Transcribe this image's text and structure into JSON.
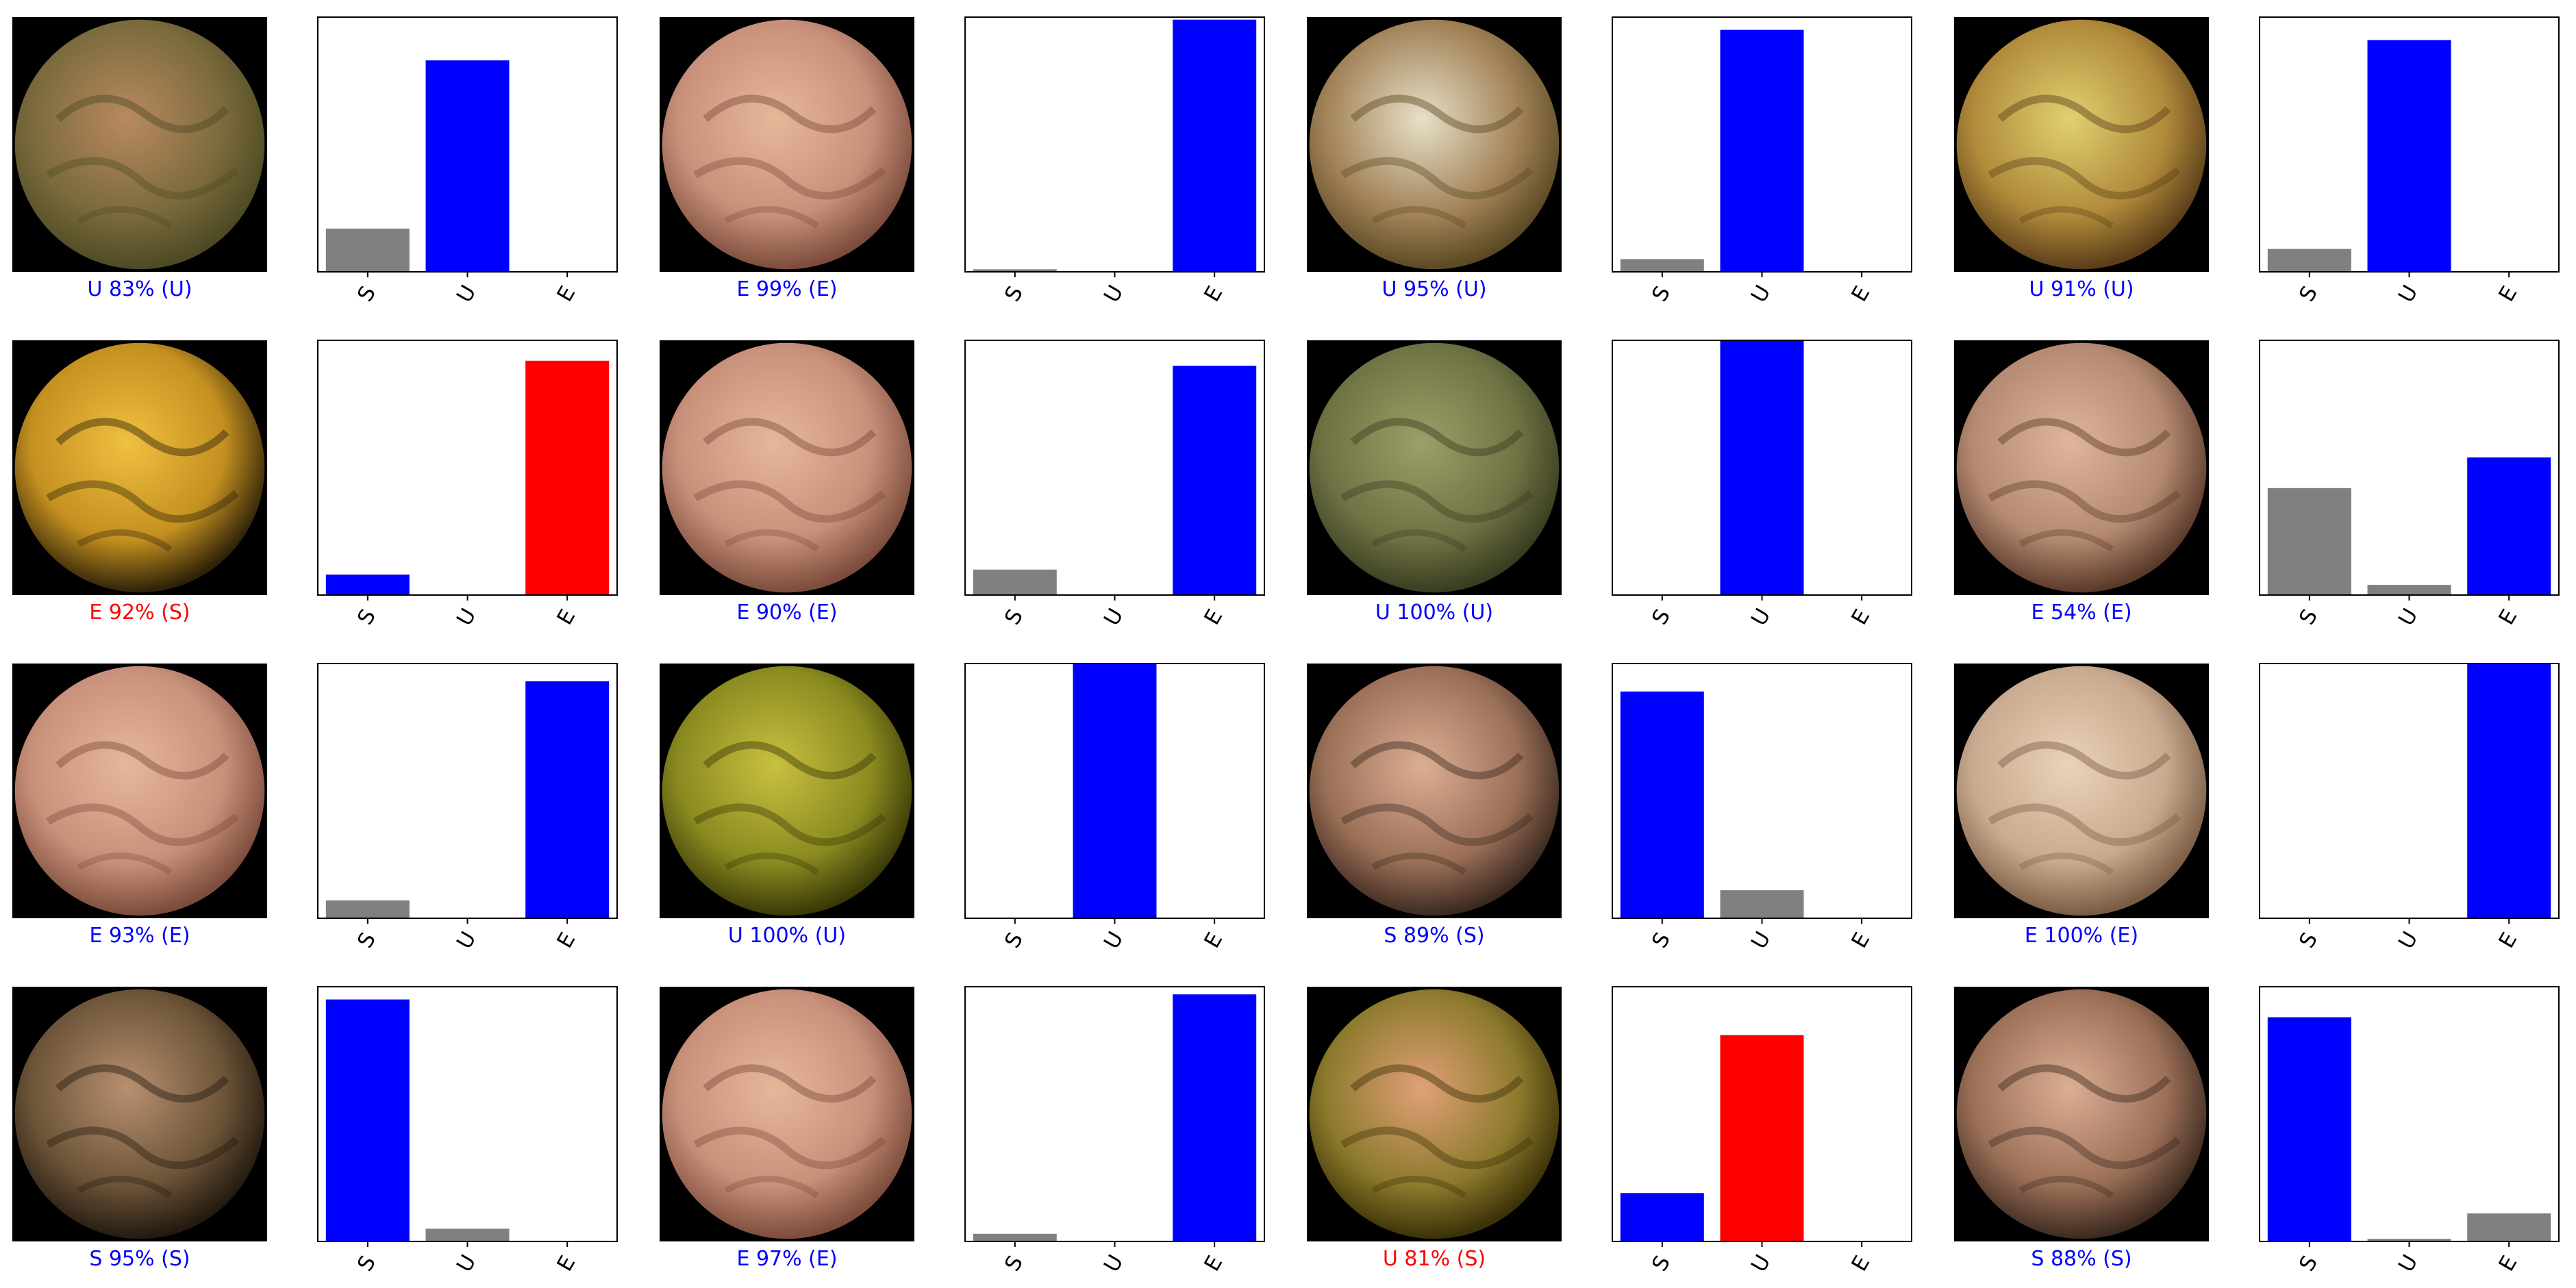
{
  "classes": [
    "S",
    "U",
    "E"
  ],
  "colors": {
    "correct": "#0000ff",
    "incorrect": "#ff0000",
    "other_bar": "#808080",
    "plot_border": "#000000"
  },
  "chart_data": [
    {
      "type": "bar",
      "caption": "U 83% (U)",
      "predicted": "U",
      "actual": "U",
      "correct": true,
      "categories": [
        "S",
        "U",
        "E"
      ],
      "values": [
        0.17,
        0.83,
        0.0
      ],
      "ylim": [
        0,
        1
      ],
      "image": "endoscopy-greenish-mucosa"
    },
    {
      "type": "bar",
      "caption": "E 99% (E)",
      "predicted": "E",
      "actual": "E",
      "correct": true,
      "categories": [
        "S",
        "U",
        "E"
      ],
      "values": [
        0.01,
        0.0,
        0.99
      ],
      "ylim": [
        0,
        1
      ],
      "image": "endoscopy-villous-folds"
    },
    {
      "type": "bar",
      "caption": "U 95% (U)",
      "predicted": "U",
      "actual": "U",
      "correct": true,
      "categories": [
        "S",
        "U",
        "E"
      ],
      "values": [
        0.05,
        0.95,
        0.0
      ],
      "ylim": [
        0,
        1
      ],
      "image": "endoscopy-debris-strands"
    },
    {
      "type": "bar",
      "caption": "U 91% (U)",
      "predicted": "U",
      "actual": "U",
      "correct": true,
      "categories": [
        "S",
        "U",
        "E"
      ],
      "values": [
        0.09,
        0.91,
        0.0
      ],
      "ylim": [
        0,
        1
      ],
      "image": "endoscopy-yellow-debris"
    },
    {
      "type": "bar",
      "caption": "E 92% (S)",
      "predicted": "E",
      "actual": "S",
      "correct": false,
      "categories": [
        "S",
        "U",
        "E"
      ],
      "values": [
        0.08,
        0.0,
        0.92
      ],
      "ylim": [
        0,
        1
      ],
      "image": "endoscopy-yellow-lumen"
    },
    {
      "type": "bar",
      "caption": "E 90% (E)",
      "predicted": "E",
      "actual": "E",
      "correct": true,
      "categories": [
        "S",
        "U",
        "E"
      ],
      "values": [
        0.1,
        0.0,
        0.9
      ],
      "ylim": [
        0,
        1
      ],
      "image": "endoscopy-villous-folds"
    },
    {
      "type": "bar",
      "caption": "U 100% (U)",
      "predicted": "U",
      "actual": "U",
      "correct": true,
      "categories": [
        "S",
        "U",
        "E"
      ],
      "values": [
        0.0,
        1.0,
        0.0
      ],
      "ylim": [
        0,
        1
      ],
      "image": "endoscopy-greenish-fluid"
    },
    {
      "type": "bar",
      "caption": "E 54% (E)",
      "predicted": "E",
      "actual": "E",
      "correct": true,
      "categories": [
        "S",
        "U",
        "E"
      ],
      "values": [
        0.42,
        0.04,
        0.54
      ],
      "ylim": [
        0,
        1
      ],
      "image": "endoscopy-pink-mucosa"
    },
    {
      "type": "bar",
      "caption": "E 93% (E)",
      "predicted": "E",
      "actual": "E",
      "correct": true,
      "categories": [
        "S",
        "U",
        "E"
      ],
      "values": [
        0.07,
        0.0,
        0.93
      ],
      "ylim": [
        0,
        1
      ],
      "image": "endoscopy-villous-folds"
    },
    {
      "type": "bar",
      "caption": "U 100% (U)",
      "predicted": "U",
      "actual": "U",
      "correct": true,
      "categories": [
        "S",
        "U",
        "E"
      ],
      "values": [
        0.0,
        1.0,
        0.0
      ],
      "ylim": [
        0,
        1
      ],
      "image": "endoscopy-green-granular"
    },
    {
      "type": "bar",
      "caption": "S 89% (S)",
      "predicted": "S",
      "actual": "S",
      "correct": true,
      "categories": [
        "S",
        "U",
        "E"
      ],
      "values": [
        0.89,
        0.11,
        0.0
      ],
      "ylim": [
        0,
        1
      ],
      "image": "endoscopy-folds-debris"
    },
    {
      "type": "bar",
      "caption": "E 100% (E)",
      "predicted": "E",
      "actual": "E",
      "correct": true,
      "categories": [
        "S",
        "U",
        "E"
      ],
      "values": [
        0.0,
        0.0,
        1.0
      ],
      "ylim": [
        0,
        1
      ],
      "image": "endoscopy-pale-folds"
    },
    {
      "type": "bar",
      "caption": "S 95% (S)",
      "predicted": "S",
      "actual": "S",
      "correct": true,
      "categories": [
        "S",
        "U",
        "E"
      ],
      "values": [
        0.95,
        0.05,
        0.0
      ],
      "ylim": [
        0,
        1
      ],
      "image": "endoscopy-dark-debris"
    },
    {
      "type": "bar",
      "caption": "E 97% (E)",
      "predicted": "E",
      "actual": "E",
      "correct": true,
      "categories": [
        "S",
        "U",
        "E"
      ],
      "values": [
        0.03,
        0.0,
        0.97
      ],
      "ylim": [
        0,
        1
      ],
      "image": "endoscopy-villous-folds"
    },
    {
      "type": "bar",
      "caption": "U 81% (S)",
      "predicted": "U",
      "actual": "S",
      "correct": false,
      "categories": [
        "S",
        "U",
        "E"
      ],
      "values": [
        0.19,
        0.81,
        0.0
      ],
      "ylim": [
        0,
        1
      ],
      "image": "endoscopy-mucosa-debris"
    },
    {
      "type": "bar",
      "caption": "S 88% (S)",
      "predicted": "S",
      "actual": "S",
      "correct": true,
      "categories": [
        "S",
        "U",
        "E"
      ],
      "values": [
        0.88,
        0.01,
        0.11
      ],
      "ylim": [
        0,
        1
      ],
      "image": "endoscopy-folds-debris"
    }
  ]
}
